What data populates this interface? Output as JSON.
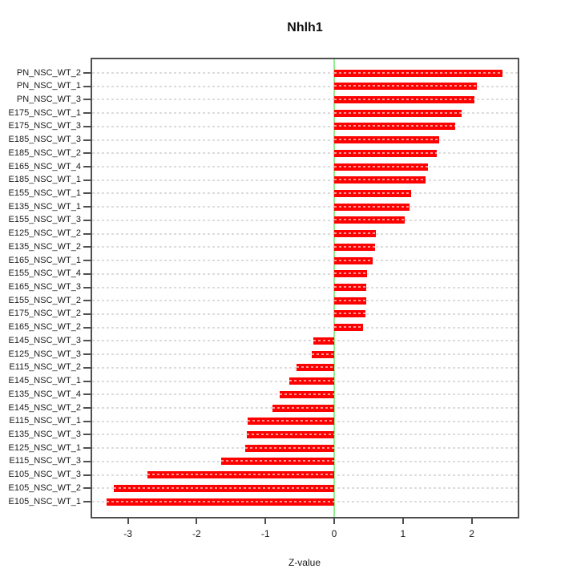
{
  "title": "Nhlh1",
  "xlabel": "Z-value",
  "chart_data": {
    "type": "bar",
    "orientation": "horizontal",
    "title": "Nhlh1",
    "xlabel": "Z-value",
    "ylabel": "",
    "categories": [
      "PN_NSC_WT_2",
      "PN_NSC_WT_1",
      "PN_NSC_WT_3",
      "E175_NSC_WT_1",
      "E175_NSC_WT_3",
      "E185_NSC_WT_3",
      "E185_NSC_WT_2",
      "E165_NSC_WT_4",
      "E185_NSC_WT_1",
      "E155_NSC_WT_1",
      "E135_NSC_WT_1",
      "E155_NSC_WT_3",
      "E125_NSC_WT_2",
      "E135_NSC_WT_2",
      "E165_NSC_WT_1",
      "E155_NSC_WT_4",
      "E165_NSC_WT_3",
      "E155_NSC_WT_2",
      "E175_NSC_WT_2",
      "E165_NSC_WT_2",
      "E145_NSC_WT_3",
      "E125_NSC_WT_3",
      "E115_NSC_WT_2",
      "E145_NSC_WT_1",
      "E135_NSC_WT_4",
      "E145_NSC_WT_2",
      "E115_NSC_WT_1",
      "E135_NSC_WT_3",
      "E125_NSC_WT_1",
      "E115_NSC_WT_3",
      "E105_NSC_WT_3",
      "E105_NSC_WT_2",
      "E105_NSC_WT_1"
    ],
    "values": [
      2.45,
      2.08,
      2.04,
      1.85,
      1.76,
      1.53,
      1.49,
      1.36,
      1.33,
      1.12,
      1.1,
      1.03,
      0.61,
      0.6,
      0.56,
      0.48,
      0.47,
      0.47,
      0.45,
      0.42,
      -0.3,
      -0.33,
      -0.55,
      -0.65,
      -0.79,
      -0.9,
      -1.26,
      -1.27,
      -1.29,
      -1.64,
      -2.71,
      -3.2,
      -3.31
    ],
    "xticks": [
      -3,
      -2,
      -1,
      0,
      1,
      2
    ],
    "xlim": [
      -3.54,
      2.69
    ],
    "grid": "horizontal dashed per row",
    "zero_line_value": 0,
    "legend": "none"
  },
  "colors": {
    "bar": "#ff0000",
    "bar_dash": "#ff9999",
    "zero_line": "#90ee90",
    "grid": "#dcdcdc",
    "axis": "#4f4f4f",
    "text": "#1a1a1a",
    "background": "#ffffff"
  }
}
